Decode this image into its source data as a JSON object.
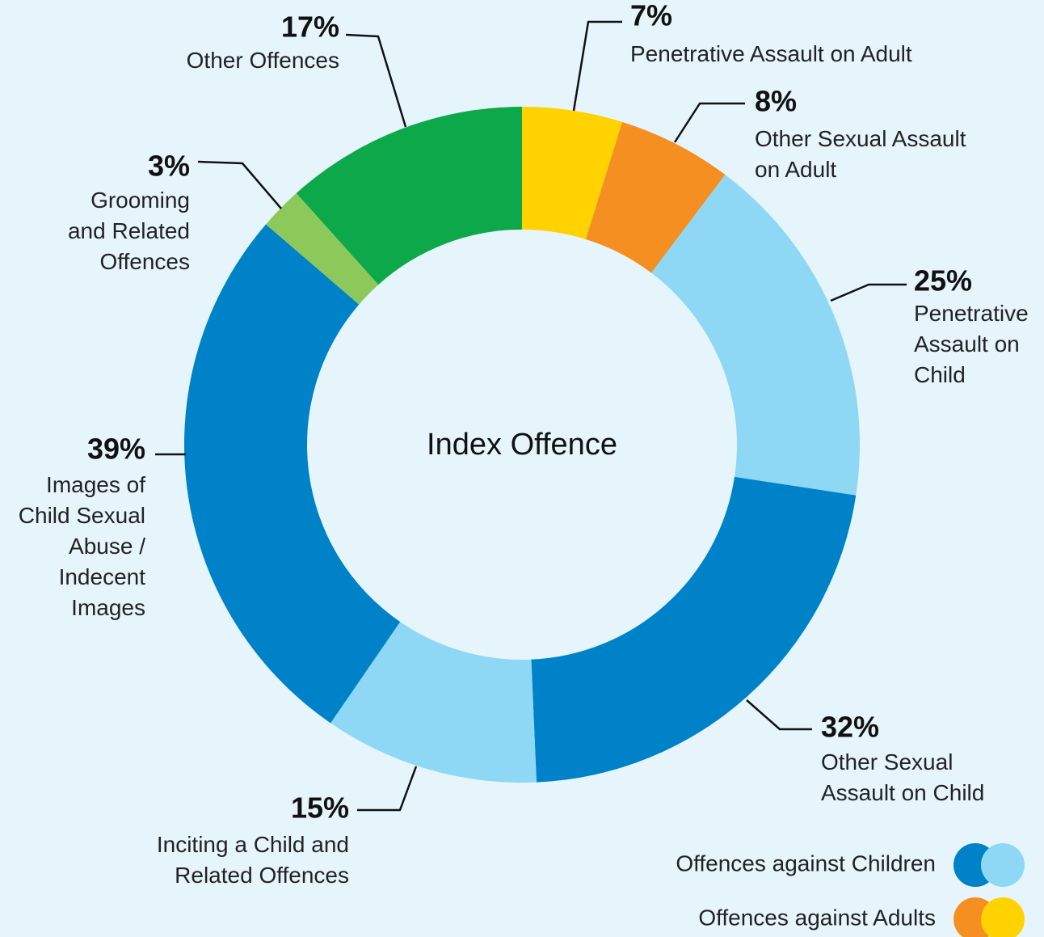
{
  "chart_data": {
    "type": "pie",
    "donut": true,
    "title": "Index Offence",
    "categories": [
      "Penetrative Assault on Adult",
      "Other Sexual Assault\non Adult",
      "Penetrative\nAssault on\nChild",
      "Other Sexual\nAssault on Child",
      "Inciting a Child and\nRelated Offences",
      "Images of\nChild Sexual\nAbuse /\nIndecent\nImages",
      "Grooming\nand Related\nOffences",
      "Other Offences"
    ],
    "values": [
      7,
      8,
      25,
      32,
      15,
      39,
      3,
      17
    ],
    "value_labels": [
      "7%",
      "8%",
      "25%",
      "32%",
      "15%",
      "39%",
      "3%",
      "17%"
    ],
    "colors": [
      "#FFD200",
      "#F58F22",
      "#8FD8F5",
      "#0082C8",
      "#8FD8F5",
      "#0082C8",
      "#8CC85A",
      "#0DA84A"
    ],
    "legend": [
      {
        "label": "Offences against Children",
        "colors": [
          "#0082C8",
          "#8FD8F5"
        ]
      },
      {
        "label": "Offences against Adults",
        "colors": [
          "#F58F22",
          "#FFD200"
        ]
      }
    ]
  }
}
